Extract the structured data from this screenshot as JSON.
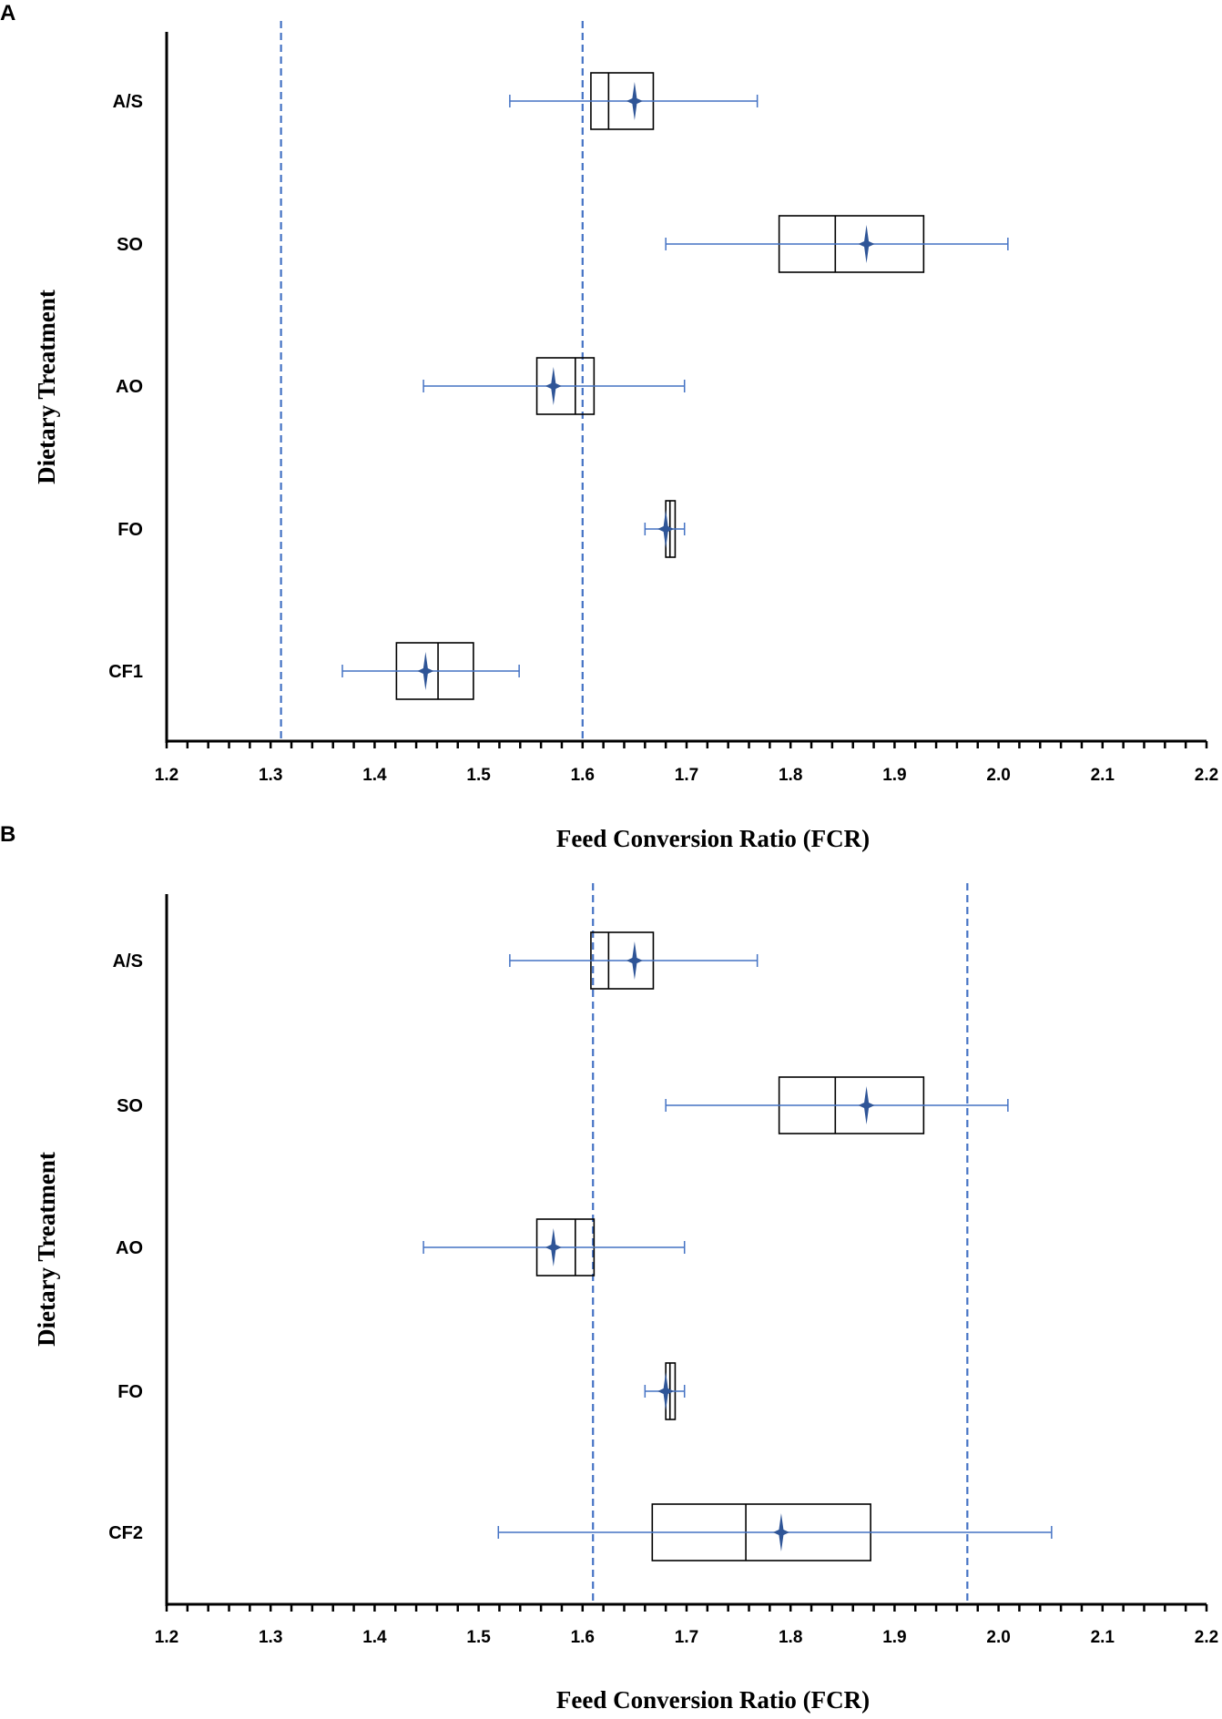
{
  "chart_data": [
    {
      "type": "box",
      "panel_label": "A",
      "xlabel": "Feed Conversion Ratio (FCR)",
      "ylabel": "Dietary Treatment",
      "xlim": [
        1.2,
        2.2
      ],
      "xticks": [
        "1.2",
        "1.3",
        "1.4",
        "1.5",
        "1.6",
        "1.7",
        "1.8",
        "1.9",
        "2.0",
        "2.1",
        "2.2"
      ],
      "minor_tick_step": 0.02,
      "reference_lines": [
        1.31,
        1.6
      ],
      "colors": {
        "whisker": "#4472c4",
        "mean": "#2f5597",
        "box": "#000000",
        "ref": "#4472c4"
      },
      "categories": [
        {
          "label": "A/S",
          "whisker_low": 1.53,
          "q1": 1.608,
          "median": 1.625,
          "q3": 1.668,
          "whisker_high": 1.768,
          "mean": 1.65
        },
        {
          "label": "SO",
          "whisker_low": 1.68,
          "q1": 1.789,
          "median": 1.843,
          "q3": 1.928,
          "whisker_high": 2.009,
          "mean": 1.873
        },
        {
          "label": "AO",
          "whisker_low": 1.447,
          "q1": 1.556,
          "median": 1.593,
          "q3": 1.611,
          "whisker_high": 1.698,
          "mean": 1.572
        },
        {
          "label": "FO",
          "whisker_low": 1.66,
          "q1": 1.68,
          "median": 1.684,
          "q3": 1.689,
          "whisker_high": 1.698,
          "mean": 1.68
        },
        {
          "label": "CF1",
          "whisker_low": 1.369,
          "q1": 1.421,
          "median": 1.461,
          "q3": 1.495,
          "whisker_high": 1.539,
          "mean": 1.449
        }
      ]
    },
    {
      "type": "box",
      "panel_label": "B",
      "xlabel": "Feed Conversion Ratio (FCR)",
      "ylabel": "Dietary Treatment",
      "xlim": [
        1.2,
        2.2
      ],
      "xticks": [
        "1.2",
        "1.3",
        "1.4",
        "1.5",
        "1.6",
        "1.7",
        "1.8",
        "1.9",
        "2.0",
        "2.1",
        "2.2"
      ],
      "minor_tick_step": 0.02,
      "reference_lines": [
        1.61,
        1.97
      ],
      "colors": {
        "whisker": "#4472c4",
        "mean": "#2f5597",
        "box": "#000000",
        "ref": "#4472c4"
      },
      "categories": [
        {
          "label": "A/S",
          "whisker_low": 1.53,
          "q1": 1.608,
          "median": 1.625,
          "q3": 1.668,
          "whisker_high": 1.768,
          "mean": 1.65
        },
        {
          "label": "SO",
          "whisker_low": 1.68,
          "q1": 1.789,
          "median": 1.843,
          "q3": 1.928,
          "whisker_high": 2.009,
          "mean": 1.873
        },
        {
          "label": "AO",
          "whisker_low": 1.447,
          "q1": 1.556,
          "median": 1.593,
          "q3": 1.611,
          "whisker_high": 1.698,
          "mean": 1.572
        },
        {
          "label": "FO",
          "whisker_low": 1.66,
          "q1": 1.68,
          "median": 1.684,
          "q3": 1.689,
          "whisker_high": 1.698,
          "mean": 1.68
        },
        {
          "label": "CF2",
          "whisker_low": 1.519,
          "q1": 1.667,
          "median": 1.757,
          "q3": 1.877,
          "whisker_high": 2.051,
          "mean": 1.791
        }
      ]
    }
  ]
}
